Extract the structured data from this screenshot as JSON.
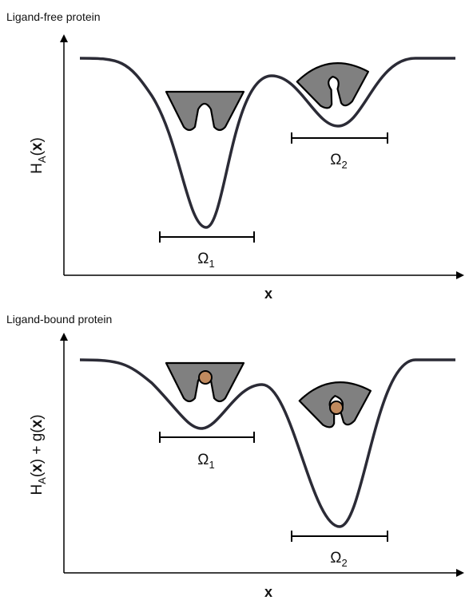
{
  "panels": [
    {
      "title": "Ligand-free protein",
      "y_label": [
        {
          "text": "H"
        },
        {
          "text": "A",
          "style": "sub"
        },
        {
          "text": "("
        },
        {
          "text": "x",
          "style": "bold"
        },
        {
          "text": ")"
        }
      ],
      "x_label": "x",
      "omega_1": {
        "symbol": "Ω",
        "subscript": "1"
      },
      "omega_2": {
        "symbol": "Ω",
        "subscript": "2"
      }
    },
    {
      "title": "Ligand-bound protein",
      "y_label": [
        {
          "text": "H"
        },
        {
          "text": "A",
          "style": "sub"
        },
        {
          "text": "("
        },
        {
          "text": "x",
          "style": "bold"
        },
        {
          "text": ") + g("
        },
        {
          "text": "x",
          "style": "bold"
        },
        {
          "text": ")"
        }
      ],
      "x_label": "x",
      "omega_1": {
        "symbol": "Ω",
        "subscript": "1"
      },
      "omega_2": {
        "symbol": "Ω",
        "subscript": "2"
      }
    }
  ]
}
